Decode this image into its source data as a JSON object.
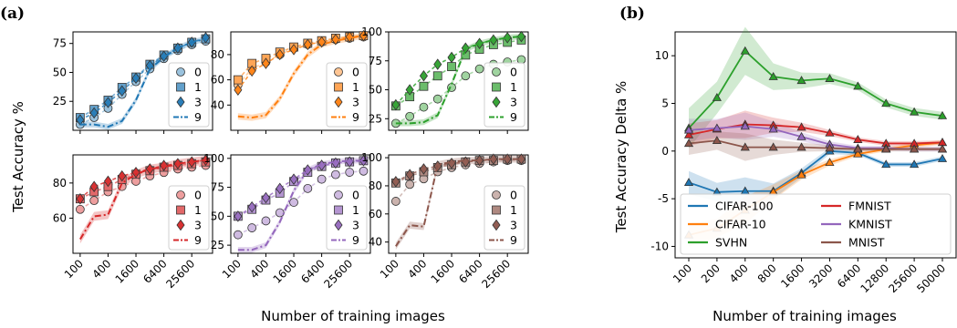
{
  "panel_labels": [
    "(a)",
    "(b)"
  ],
  "chart_data": [
    {
      "type": "line",
      "panel": "(a)",
      "xlabel": "Number of training images",
      "ylabel": "Test Accuracy %",
      "x_scale": "log",
      "x_tick_labels": [
        "100",
        "400",
        "1600",
        "6400",
        "25600"
      ],
      "x_tick_values": [
        100,
        400,
        1600,
        6400,
        25600
      ],
      "subplots": [
        {
          "ylim": [
            0,
            85
          ],
          "yticks": [
            25,
            50,
            75
          ],
          "color": "#1f77b4",
          "legend": [
            "0",
            "1",
            "3",
            "9"
          ],
          "series": [
            {
              "name": "0",
              "marker": "circle",
              "x": [
                100,
                200,
                400,
                800,
                1600,
                3200,
                6400,
                12800,
                25600,
                51200
              ],
              "y": [
                5,
                11,
                19,
                31,
                42,
                53,
                62,
                69,
                74,
                77
              ]
            },
            {
              "name": "1",
              "marker": "square",
              "x": [
                100,
                200,
                400,
                800,
                1600,
                3200,
                6400,
                12800,
                25600,
                51200
              ],
              "y": [
                11,
                18,
                26,
                37,
                46,
                57,
                65,
                71,
                76,
                79
              ]
            },
            {
              "name": "3",
              "marker": "diamond",
              "x": [
                100,
                200,
                400,
                800,
                1600,
                3200,
                6400,
                12800,
                25600,
                51200
              ],
              "y": [
                9,
                15,
                24,
                34,
                45,
                56,
                64,
                71,
                76,
                80
              ]
            },
            {
              "name": "9",
              "marker": "none",
              "x": [
                100,
                200,
                400,
                800,
                1600,
                3200,
                6400,
                12800,
                25600,
                51200
              ],
              "y": [
                5,
                5,
                3,
                8,
                26,
                53,
                63,
                71,
                76,
                79
              ]
            }
          ]
        },
        {
          "ylim": [
            20,
            98
          ],
          "yticks": [
            40,
            60,
            80
          ],
          "color": "#ff7f0e",
          "legend": [
            "0",
            "1",
            "3",
            "9"
          ],
          "series": [
            {
              "name": "0",
              "marker": "circle",
              "x": [
                100,
                200,
                400,
                800,
                1600,
                3200,
                6400,
                12800,
                25600,
                51200
              ],
              "y": [
                56,
                69,
                74,
                80,
                85,
                88,
                90,
                92,
                93,
                94
              ]
            },
            {
              "name": "1",
              "marker": "square",
              "x": [
                100,
                200,
                400,
                800,
                1600,
                3200,
                6400,
                12800,
                25600,
                51200
              ],
              "y": [
                60,
                73,
                77,
                82,
                86,
                89,
                91,
                93,
                94,
                95
              ]
            },
            {
              "name": "3",
              "marker": "diamond",
              "x": [
                100,
                200,
                400,
                800,
                1600,
                3200,
                6400,
                12800,
                25600,
                51200
              ],
              "y": [
                52,
                67,
                73,
                80,
                84,
                88,
                90,
                92,
                94,
                95
              ]
            },
            {
              "name": "9",
              "marker": "none",
              "x": [
                100,
                200,
                400,
                800,
                1600,
                3200,
                6400,
                12800,
                25600,
                51200
              ],
              "y": [
                31,
                30,
                32,
                45,
                65,
                80,
                88,
                91,
                93,
                95
              ]
            }
          ]
        },
        {
          "ylim": [
            15,
            100
          ],
          "yticks": [
            25,
            50,
            75,
            100
          ],
          "color": "#2ca02c",
          "legend": [
            "0",
            "1",
            "3",
            "9"
          ],
          "series": [
            {
              "name": "0",
              "marker": "circle",
              "x": [
                100,
                200,
                400,
                800,
                1600,
                3200,
                6400,
                12800,
                25600,
                51200
              ],
              "y": [
                21,
                27,
                35,
                42,
                52,
                62,
                68,
                72,
                74,
                76
              ]
            },
            {
              "name": "1",
              "marker": "square",
              "x": [
                100,
                200,
                400,
                800,
                1600,
                3200,
                6400,
                12800,
                25600,
                51200
              ],
              "y": [
                36,
                44,
                53,
                62,
                70,
                80,
                85,
                89,
                91,
                93
              ]
            },
            {
              "name": "3",
              "marker": "diamond",
              "x": [
                100,
                200,
                400,
                800,
                1600,
                3200,
                6400,
                12800,
                25600,
                51200
              ],
              "y": [
                37,
                50,
                62,
                72,
                78,
                86,
                90,
                93,
                95,
                96
              ]
            },
            {
              "name": "9",
              "marker": "none",
              "x": [
                100,
                200,
                400,
                800,
                1600,
                3200,
                6400,
                12800,
                25600,
                51200
              ],
              "y": [
                21,
                21,
                22,
                28,
                55,
                85,
                90,
                93,
                95,
                96
              ]
            }
          ]
        },
        {
          "ylim": [
            40,
            96
          ],
          "yticks": [
            60,
            80
          ],
          "color": "#d62728",
          "legend": [
            "0",
            "1",
            "3",
            "9"
          ],
          "series": [
            {
              "name": "0",
              "marker": "circle",
              "x": [
                100,
                200,
                400,
                800,
                1600,
                3200,
                6400,
                12800,
                25600,
                51200
              ],
              "y": [
                65,
                70,
                75,
                78,
                81,
                84,
                86,
                88,
                89,
                90
              ]
            },
            {
              "name": "1",
              "marker": "square",
              "x": [
                100,
                200,
                400,
                800,
                1600,
                3200,
                6400,
                12800,
                25600,
                51200
              ],
              "y": [
                71,
                75,
                78,
                82,
                85,
                87,
                89,
                90,
                91,
                92
              ]
            },
            {
              "name": "3",
              "marker": "diamond",
              "x": [
                100,
                200,
                400,
                800,
                1600,
                3200,
                6400,
                12800,
                25600,
                51200
              ],
              "y": [
                71,
                78,
                81,
                84,
                86,
                88,
                90,
                91,
                92,
                93
              ]
            },
            {
              "name": "9",
              "marker": "none",
              "x": [
                100,
                200,
                400,
                800,
                1600,
                3200,
                6400,
                12800,
                25600,
                51200
              ],
              "y": [
                48,
                61,
                62,
                80,
                85,
                88,
                89,
                91,
                92,
                93
              ]
            }
          ]
        },
        {
          "ylim": [
            18,
            103
          ],
          "yticks": [
            25,
            50,
            75,
            100
          ],
          "color": "#9467bd",
          "legend": [
            "0",
            "1",
            "3",
            "9"
          ],
          "series": [
            {
              "name": "0",
              "marker": "circle",
              "x": [
                100,
                200,
                400,
                800,
                1600,
                3200,
                6400,
                12800,
                25600,
                51200
              ],
              "y": [
                34,
                40,
                46,
                53,
                62,
                74,
                82,
                86,
                88,
                89
              ]
            },
            {
              "name": "1",
              "marker": "square",
              "x": [
                100,
                200,
                400,
                800,
                1600,
                3200,
                6400,
                12800,
                25600,
                51200
              ],
              "y": [
                50,
                56,
                64,
                70,
                80,
                88,
                93,
                96,
                97,
                98
              ]
            },
            {
              "name": "3",
              "marker": "diamond",
              "x": [
                100,
                200,
                400,
                800,
                1600,
                3200,
                6400,
                12800,
                25600,
                51200
              ],
              "y": [
                50,
                58,
                66,
                74,
                82,
                90,
                94,
                96,
                97,
                98
              ]
            },
            {
              "name": "9",
              "marker": "none",
              "x": [
                100,
                200,
                400,
                800,
                1600,
                3200,
                6400,
                12800,
                25600,
                51200
              ],
              "y": [
                21,
                21,
                25,
                45,
                72,
                90,
                95,
                97,
                98,
                98
              ]
            }
          ]
        },
        {
          "ylim": [
            32,
            102
          ],
          "yticks": [
            40,
            60,
            80,
            100
          ],
          "color": "#8c564b",
          "legend": [
            "0",
            "1",
            "3",
            "9"
          ],
          "series": [
            {
              "name": "0",
              "marker": "circle",
              "x": [
                100,
                200,
                400,
                800,
                1600,
                3200,
                6400,
                12800,
                25600,
                51200
              ],
              "y": [
                69,
                81,
                85,
                90,
                93,
                95,
                96,
                97,
                98,
                98
              ]
            },
            {
              "name": "1",
              "marker": "square",
              "x": [
                100,
                200,
                400,
                800,
                1600,
                3200,
                6400,
                12800,
                25600,
                51200
              ],
              "y": [
                82,
                87,
                90,
                93,
                95,
                97,
                98,
                98,
                99,
                99
              ]
            },
            {
              "name": "3",
              "marker": "diamond",
              "x": [
                100,
                200,
                400,
                800,
                1600,
                3200,
                6400,
                12800,
                25600,
                51200
              ],
              "y": [
                83,
                88,
                92,
                94,
                96,
                97,
                98,
                99,
                99,
                99
              ]
            },
            {
              "name": "9",
              "marker": "none",
              "x": [
                100,
                200,
                400,
                800,
                1600,
                3200,
                6400,
                12800,
                25600,
                51200
              ],
              "y": [
                37,
                52,
                51,
                95,
                97,
                98,
                98,
                99,
                99,
                99
              ]
            }
          ]
        }
      ]
    },
    {
      "type": "line",
      "panel": "(b)",
      "xlabel": "Number of training images",
      "ylabel": "Test Accuracy Delta %",
      "categories": [
        "100",
        "200",
        "400",
        "800",
        "1600",
        "3200",
        "6400",
        "12800",
        "25600",
        "50000"
      ],
      "ylim": [
        -11.2,
        12.5
      ],
      "yticks": [
        -10,
        -5,
        0,
        5,
        10
      ],
      "legend_position": "lower-right",
      "series": [
        {
          "name": "CIFAR-100",
          "color": "#1f77b4",
          "values": [
            -3.3,
            -4.3,
            -4.2,
            -4.2,
            -2.3,
            0.0,
            -0.2,
            -1.4,
            -1.4,
            -0.8
          ]
        },
        {
          "name": "CIFAR-10",
          "color": "#ff7f0e",
          "values": [
            -8.8,
            -8.1,
            -6.2,
            -4.3,
            -2.5,
            -1.2,
            -0.3,
            0.2,
            0.6,
            0.9
          ]
        },
        {
          "name": "SVHN",
          "color": "#2ca02c",
          "values": [
            2.4,
            5.6,
            10.5,
            7.8,
            7.4,
            7.6,
            6.8,
            5.0,
            4.1,
            3.7
          ]
        },
        {
          "name": "FMNIST",
          "color": "#d62728",
          "values": [
            1.7,
            2.3,
            2.8,
            2.7,
            2.5,
            1.9,
            1.2,
            0.8,
            0.8,
            0.9
          ]
        },
        {
          "name": "KMNIST",
          "color": "#9467bd",
          "values": [
            2.2,
            2.4,
            2.6,
            2.3,
            1.5,
            0.7,
            0.3,
            0.3,
            0.2,
            0.2
          ]
        },
        {
          "name": "MNIST",
          "color": "#8c564b",
          "values": [
            0.8,
            1.1,
            0.4,
            0.4,
            0.4,
            0.3,
            0.2,
            0.2,
            0.2,
            0.2
          ]
        }
      ]
    }
  ]
}
